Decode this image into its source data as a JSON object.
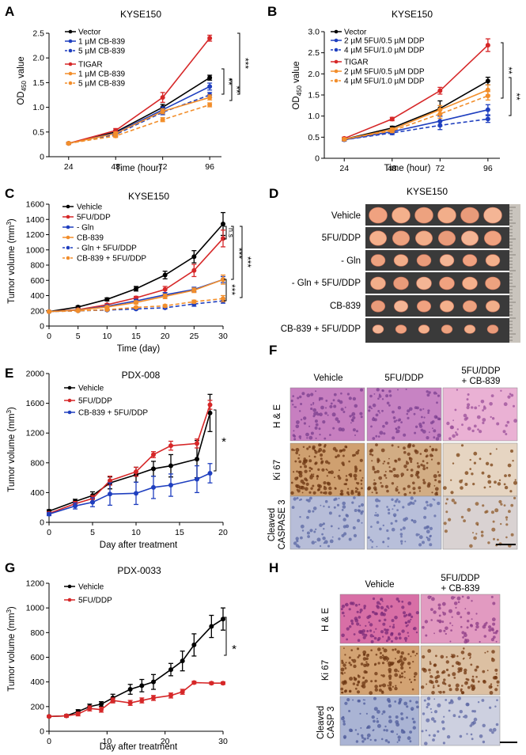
{
  "chart_data": [
    {
      "panel": "A",
      "type": "line",
      "title": "KYSE150",
      "xlabel": "Time (hour)",
      "ylabel": "OD450 value",
      "ylabel_main": "OD",
      "ylabel_sub": "450",
      "ylabel_tail": " value",
      "x": [
        24,
        48,
        72,
        96
      ],
      "xlim": [
        14,
        102
      ],
      "ylim": [
        0,
        2.5
      ],
      "yticks": [
        0,
        0.5,
        1.0,
        1.5,
        2.0,
        2.5
      ],
      "legend_groups": [
        {
          "heading": "Vector",
          "heading_color": "#000000"
        },
        {
          "heading": "TIGAR",
          "heading_color": "#d62728"
        }
      ],
      "series": [
        {
          "name": "Vector",
          "color": "#000000",
          "dash": false,
          "values": [
            0.27,
            0.5,
            1.0,
            1.6
          ],
          "err": [
            0.02,
            0.04,
            0.06,
            0.05
          ]
        },
        {
          "name": "1 µM CB-839",
          "color": "#1f3fbf",
          "dash": false,
          "values": [
            0.27,
            0.48,
            0.95,
            1.42
          ],
          "err": [
            0.02,
            0.04,
            0.06,
            0.07
          ]
        },
        {
          "name": "5 µM CB-839",
          "color": "#1f3fbf",
          "dash": true,
          "values": [
            0.27,
            0.45,
            0.9,
            1.25
          ],
          "err": [
            0.02,
            0.04,
            0.05,
            0.05
          ]
        },
        {
          "name": "TIGAR",
          "color": "#d62728",
          "dash": false,
          "values": [
            0.27,
            0.53,
            1.2,
            2.4
          ],
          "err": [
            0.02,
            0.04,
            0.1,
            0.06
          ]
        },
        {
          "name": "1 µM CB-839",
          "color": "#f28e2b",
          "dash": false,
          "values": [
            0.27,
            0.47,
            0.92,
            1.2
          ],
          "err": [
            0.02,
            0.03,
            0.05,
            0.05
          ]
        },
        {
          "name": "5 µM CB-839",
          "color": "#f28e2b",
          "dash": true,
          "values": [
            0.27,
            0.42,
            0.75,
            1.05
          ],
          "err": [
            0.02,
            0.03,
            0.04,
            0.04
          ]
        }
      ]
    },
    {
      "panel": "B",
      "type": "line",
      "title": "KYSE150",
      "xlabel": "Time (hour)",
      "ylabel": "OD450 value",
      "ylabel_main": "OD",
      "ylabel_sub": "450",
      "ylabel_tail": " value",
      "x": [
        24,
        48,
        72,
        96
      ],
      "xlim": [
        14,
        102
      ],
      "ylim": [
        0,
        3.0
      ],
      "yticks": [
        0,
        0.5,
        1.0,
        1.5,
        2.0,
        2.5,
        3.0
      ],
      "legend_groups": [
        {
          "heading": "Vector",
          "heading_color": "#000000"
        },
        {
          "heading": "TIGAR",
          "heading_color": "#d62728"
        }
      ],
      "series": [
        {
          "name": "Vector",
          "color": "#000000",
          "dash": false,
          "values": [
            0.45,
            0.72,
            1.18,
            1.83
          ],
          "err": [
            0.03,
            0.04,
            0.18,
            0.09
          ]
        },
        {
          "name": "2 µM 5FU/0.5 µM DDP",
          "color": "#1f3fbf",
          "dash": false,
          "values": [
            0.44,
            0.63,
            0.88,
            1.15
          ],
          "err": [
            0.03,
            0.04,
            0.12,
            0.12
          ]
        },
        {
          "name": "4 µM 5FU/1.0 µM DDP",
          "color": "#1f3fbf",
          "dash": true,
          "values": [
            0.44,
            0.6,
            0.78,
            0.93
          ],
          "err": [
            0.03,
            0.04,
            0.1,
            0.08
          ]
        },
        {
          "name": "TIGAR",
          "color": "#d62728",
          "dash": false,
          "values": [
            0.47,
            0.93,
            1.6,
            2.68
          ],
          "err": [
            0.03,
            0.04,
            0.08,
            0.15
          ]
        },
        {
          "name": "2 µM 5FU/0.5 µM DDP",
          "color": "#f28e2b",
          "dash": false,
          "values": [
            0.45,
            0.68,
            1.15,
            1.62
          ],
          "err": [
            0.03,
            0.04,
            0.1,
            0.12
          ]
        },
        {
          "name": "4 µM 5FU/1.0 µM DDP",
          "color": "#f28e2b",
          "dash": true,
          "values": [
            0.45,
            0.65,
            1.05,
            1.48
          ],
          "err": [
            0.03,
            0.04,
            0.1,
            0.1
          ]
        }
      ]
    },
    {
      "panel": "C",
      "type": "line",
      "title": "KYSE150",
      "xlabel": "Time (day)",
      "ylabel": "Tumor volume (mm3)",
      "ylabel_main": "Tumor volume (mm",
      "ylabel_sup": "3",
      "ylabel_tail": ")",
      "x": [
        0,
        5,
        10,
        15,
        20,
        25,
        30
      ],
      "xlim": [
        0,
        30
      ],
      "ylim": [
        0,
        1600
      ],
      "yticks": [
        0,
        200,
        400,
        600,
        800,
        1000,
        1200,
        1400,
        1600
      ],
      "series": [
        {
          "name": "Vehicle",
          "color": "#000000",
          "dash": false,
          "values": [
            190,
            250,
            350,
            490,
            670,
            910,
            1340
          ],
          "err": [
            10,
            15,
            20,
            30,
            50,
            80,
            150
          ]
        },
        {
          "name": "5FU/DDP",
          "color": "#d62728",
          "dash": false,
          "values": [
            190,
            215,
            280,
            370,
            480,
            730,
            1150
          ],
          "err": [
            10,
            10,
            15,
            20,
            40,
            80,
            110
          ]
        },
        {
          "name": "- Gln",
          "color": "#1f3fbf",
          "dash": false,
          "values": [
            190,
            210,
            260,
            330,
            410,
            480,
            610
          ],
          "err": [
            10,
            10,
            15,
            20,
            30,
            30,
            40
          ]
        },
        {
          "name": "CB-839",
          "color": "#f28e2b",
          "dash": false,
          "values": [
            190,
            210,
            250,
            310,
            390,
            470,
            610
          ],
          "err": [
            10,
            10,
            15,
            20,
            30,
            30,
            60
          ]
        },
        {
          "name": "- Gln + 5FU/DDP",
          "color": "#1f3fbf",
          "dash": true,
          "values": [
            190,
            200,
            210,
            225,
            240,
            290,
            330
          ],
          "err": [
            10,
            10,
            10,
            10,
            15,
            30,
            30
          ]
        },
        {
          "name": "CB-839 + 5FU/DDP",
          "color": "#f28e2b",
          "dash": true,
          "values": [
            190,
            200,
            215,
            245,
            265,
            320,
            360
          ],
          "err": [
            10,
            10,
            10,
            10,
            15,
            20,
            40
          ]
        }
      ]
    },
    {
      "panel": "E",
      "type": "line",
      "title": "PDX-008",
      "xlabel": "Day after treatment",
      "ylabel": "Tumor volume (mm3)",
      "ylabel_main": "Tumor volume (mm",
      "ylabel_sup": "3",
      "ylabel_tail": ")",
      "xlim": [
        0,
        20
      ],
      "ylim": [
        0,
        2000
      ],
      "xticks": [
        0,
        5,
        10,
        15,
        20
      ],
      "yticks": [
        0,
        400,
        800,
        1200,
        1600,
        2000
      ],
      "series": [
        {
          "name": "Vehicle",
          "color": "#000000",
          "dash": false,
          "x": [
            0,
            3,
            5,
            7,
            10,
            12,
            14,
            17,
            18.5
          ],
          "values": [
            150,
            280,
            360,
            530,
            640,
            720,
            760,
            850,
            1470
          ],
          "err": [
            20,
            30,
            50,
            80,
            100,
            100,
            150,
            250,
            250
          ]
        },
        {
          "name": "5FU/DDP",
          "color": "#d62728",
          "dash": false,
          "x": [
            0,
            3,
            5,
            7,
            10,
            12,
            14,
            17,
            18.5
          ],
          "values": [
            120,
            250,
            320,
            560,
            680,
            910,
            1030,
            1060,
            1580
          ],
          "err": [
            20,
            30,
            40,
            60,
            60,
            40,
            60,
            60,
            60
          ]
        },
        {
          "name": "CB-839 + 5FU/DDP",
          "color": "#1f3fbf",
          "dash": false,
          "x": [
            0,
            3,
            5,
            7,
            10,
            12,
            14,
            17,
            18.5
          ],
          "values": [
            110,
            220,
            270,
            380,
            390,
            470,
            500,
            580,
            660
          ],
          "err": [
            20,
            40,
            60,
            150,
            150,
            150,
            150,
            180,
            130
          ]
        }
      ]
    },
    {
      "panel": "G",
      "type": "line",
      "title": "PDX-0033",
      "xlabel": "Day after treatment",
      "ylabel": "Tumor volume (mm3)",
      "ylabel_main": "Tumor volume (mm",
      "ylabel_sup": "3",
      "ylabel_tail": ")",
      "xlim": [
        0,
        30
      ],
      "ylim": [
        0,
        1200
      ],
      "xticks": [
        0,
        10,
        20,
        30
      ],
      "yticks": [
        0,
        200,
        400,
        600,
        800,
        1000,
        1200
      ],
      "series": [
        {
          "name": "Vehicle",
          "color": "#000000",
          "dash": false,
          "x": [
            0,
            3,
            5,
            7,
            9,
            11,
            14,
            16,
            18,
            21,
            23,
            25,
            28,
            30
          ],
          "values": [
            120,
            125,
            160,
            200,
            220,
            270,
            340,
            370,
            400,
            500,
            570,
            700,
            850,
            910
          ],
          "err": [
            5,
            10,
            15,
            20,
            20,
            30,
            40,
            50,
            60,
            50,
            80,
            90,
            90,
            90
          ]
        },
        {
          "name": "5FU/DDP",
          "color": "#d62728",
          "dash": false,
          "x": [
            0,
            3,
            5,
            7,
            9,
            11,
            14,
            16,
            18,
            21,
            23,
            25,
            28,
            30
          ],
          "values": [
            120,
            125,
            140,
            185,
            175,
            250,
            230,
            250,
            270,
            290,
            320,
            395,
            390,
            390
          ],
          "err": [
            5,
            10,
            15,
            20,
            20,
            20,
            20,
            20,
            20,
            20,
            20,
            10,
            10,
            10
          ]
        }
      ]
    }
  ],
  "panels": {
    "A": {
      "letter": "A",
      "sig": [
        "**",
        "**",
        "***"
      ]
    },
    "B": {
      "letter": "B",
      "sig": [
        "**",
        "**"
      ]
    },
    "C": {
      "letter": "C",
      "sig": [
        "n.s",
        "***",
        "***",
        "***"
      ]
    },
    "E": {
      "letter": "E",
      "sig": [
        "*"
      ]
    },
    "G": {
      "letter": "G",
      "sig": [
        "*"
      ]
    },
    "D": {
      "letter": "D",
      "title": "KYSE150",
      "rows": [
        "Vehicle",
        "5FU/DDP",
        "- Gln",
        "- Gln + 5FU/DDP",
        "CB-839",
        "CB-839 + 5FU/DDP"
      ],
      "tumors_per_row": [
        6,
        6,
        6,
        6,
        6,
        6
      ]
    },
    "F": {
      "letter": "F",
      "columns": [
        "Vehicle",
        "5FU/DDP",
        "5FU/DDP",
        "+ CB-839"
      ],
      "rows": [
        "H & E",
        "Ki 67",
        "Cleaved",
        "CASPASE 3"
      ]
    },
    "H": {
      "letter": "H",
      "columns": [
        "Vehicle",
        "5FU/DDP",
        "+ CB-839"
      ],
      "rows": [
        "H & E",
        "Ki 67",
        "Cleaved",
        "CASP 3"
      ]
    }
  },
  "colors": {
    "black": "#000000",
    "red": "#d62728",
    "blue": "#1f3fbf",
    "orange": "#f28e2b"
  }
}
